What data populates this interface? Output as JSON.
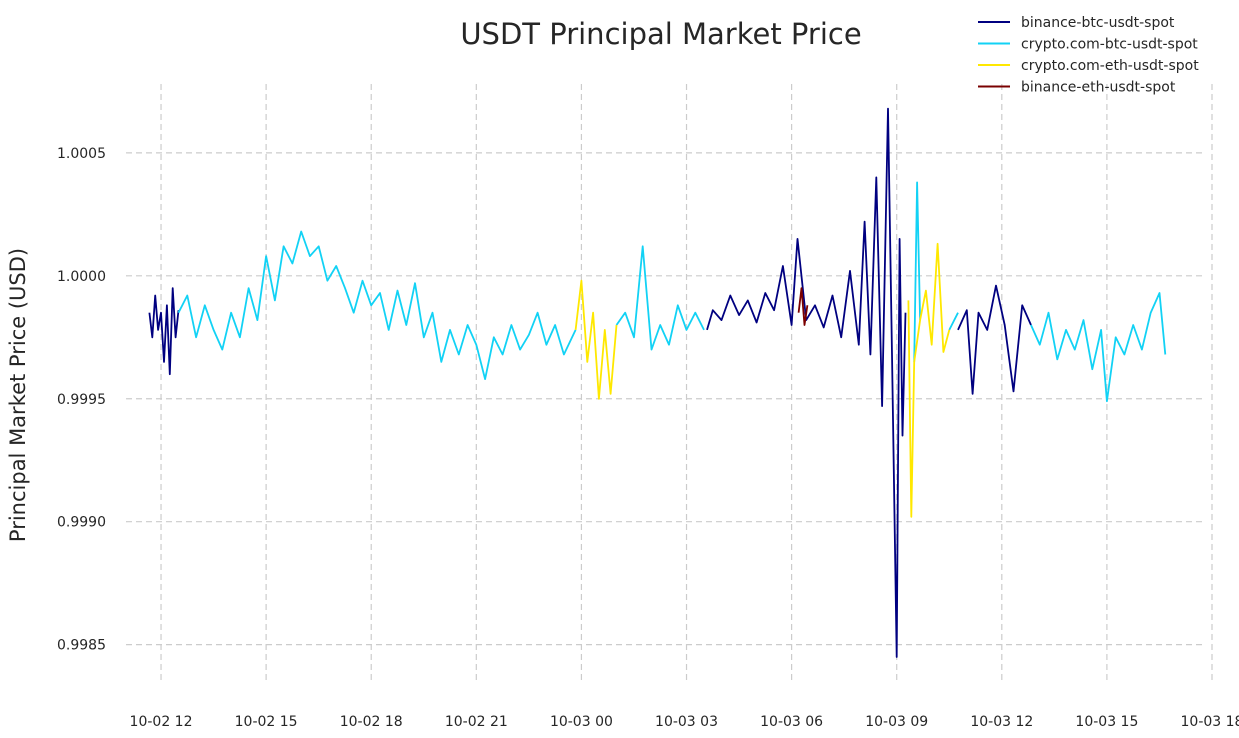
{
  "chart_data": {
    "type": "line",
    "title": "USDT Principal Market Price",
    "xlabel": "",
    "ylabel": "Principal Market Price (USD)",
    "x_type": "datetime",
    "xlim": [
      "2023-10-02 11:00",
      "2023-10-03 18:00"
    ],
    "ylim": [
      0.99834,
      1.00078
    ],
    "grid": true,
    "legend_position": "top-right",
    "x_ticks": [
      {
        "value": "2023-10-02 12:00",
        "label": "10-02 12"
      },
      {
        "value": "2023-10-02 15:00",
        "label": "10-02 15"
      },
      {
        "value": "2023-10-02 18:00",
        "label": "10-02 18"
      },
      {
        "value": "2023-10-02 21:00",
        "label": "10-02 21"
      },
      {
        "value": "2023-10-03 00:00",
        "label": "10-03 00"
      },
      {
        "value": "2023-10-03 03:00",
        "label": "10-03 03"
      },
      {
        "value": "2023-10-03 06:00",
        "label": "10-03 06"
      },
      {
        "value": "2023-10-03 09:00",
        "label": "10-03 09"
      },
      {
        "value": "2023-10-03 12:00",
        "label": "10-03 12"
      },
      {
        "value": "2023-10-03 15:00",
        "label": "10-03 15"
      },
      {
        "value": "2023-10-03 18:00",
        "label": "10-03 18"
      }
    ],
    "y_ticks": [
      {
        "value": 0.9985,
        "label": "0.9985"
      },
      {
        "value": 0.999,
        "label": "0.9990"
      },
      {
        "value": 0.9995,
        "label": "0.9995"
      },
      {
        "value": 1.0,
        "label": "1.0000"
      },
      {
        "value": 1.0005,
        "label": "1.0005"
      }
    ],
    "series": [
      {
        "name": "binance-btc-usdt-spot",
        "color": "#000080",
        "points": [
          [
            "2023-10-02 11:40",
            0.99985
          ],
          [
            "2023-10-02 11:45",
            0.99975
          ],
          [
            "2023-10-02 11:50",
            0.99992
          ],
          [
            "2023-10-02 11:55",
            0.99978
          ],
          [
            "2023-10-02 12:00",
            0.99985
          ],
          [
            "2023-10-02 12:05",
            0.99965
          ],
          [
            "2023-10-02 12:10",
            0.99988
          ],
          [
            "2023-10-02 12:15",
            0.9996
          ],
          [
            "2023-10-02 12:20",
            0.99995
          ],
          [
            "2023-10-02 12:25",
            0.99975
          ],
          [
            "2023-10-02 12:30",
            0.99986
          ],
          [
            "2023-10-03 03:35",
            0.99978
          ],
          [
            "2023-10-03 03:45",
            0.99986
          ],
          [
            "2023-10-03 04:00",
            0.99982
          ],
          [
            "2023-10-03 04:15",
            0.99992
          ],
          [
            "2023-10-03 04:30",
            0.99984
          ],
          [
            "2023-10-03 04:45",
            0.9999
          ],
          [
            "2023-10-03 05:00",
            0.99981
          ],
          [
            "2023-10-03 05:15",
            0.99993
          ],
          [
            "2023-10-03 05:30",
            0.99986
          ],
          [
            "2023-10-03 05:45",
            1.00004
          ],
          [
            "2023-10-03 06:00",
            0.9998
          ],
          [
            "2023-10-03 06:10",
            1.00015
          ],
          [
            "2023-10-03 06:25",
            0.99982
          ],
          [
            "2023-10-03 06:40",
            0.99988
          ],
          [
            "2023-10-03 06:55",
            0.99979
          ],
          [
            "2023-10-03 07:10",
            0.99992
          ],
          [
            "2023-10-03 07:25",
            0.99975
          ],
          [
            "2023-10-03 07:40",
            1.00002
          ],
          [
            "2023-10-03 07:55",
            0.99972
          ],
          [
            "2023-10-03 08:05",
            1.00022
          ],
          [
            "2023-10-03 08:15",
            0.99968
          ],
          [
            "2023-10-03 08:25",
            1.0004
          ],
          [
            "2023-10-03 08:35",
            0.99947
          ],
          [
            "2023-10-03 08:45",
            1.00068
          ],
          [
            "2023-10-03 08:52",
            0.99968
          ],
          [
            "2023-10-03 09:00",
            0.99845
          ],
          [
            "2023-10-03 09:05",
            1.00015
          ],
          [
            "2023-10-03 09:10",
            0.99935
          ],
          [
            "2023-10-03 09:15",
            0.99985
          ],
          [
            "2023-10-03 10:45",
            0.99978
          ],
          [
            "2023-10-03 11:00",
            0.99986
          ],
          [
            "2023-10-03 11:10",
            0.99952
          ],
          [
            "2023-10-03 11:20",
            0.99985
          ],
          [
            "2023-10-03 11:35",
            0.99978
          ],
          [
            "2023-10-03 11:50",
            0.99996
          ],
          [
            "2023-10-03 12:05",
            0.9998
          ],
          [
            "2023-10-03 12:20",
            0.99953
          ],
          [
            "2023-10-03 12:35",
            0.99988
          ],
          [
            "2023-10-03 12:50",
            0.9998
          ]
        ]
      },
      {
        "name": "crypto.com-btc-usdt-spot",
        "color": "#12d2f5",
        "points": [
          [
            "2023-10-02 12:30",
            0.99985
          ],
          [
            "2023-10-02 12:45",
            0.99992
          ],
          [
            "2023-10-02 13:00",
            0.99975
          ],
          [
            "2023-10-02 13:15",
            0.99988
          ],
          [
            "2023-10-02 13:30",
            0.99978
          ],
          [
            "2023-10-02 13:45",
            0.9997
          ],
          [
            "2023-10-02 14:00",
            0.99985
          ],
          [
            "2023-10-02 14:15",
            0.99975
          ],
          [
            "2023-10-02 14:30",
            0.99995
          ],
          [
            "2023-10-02 14:45",
            0.99982
          ],
          [
            "2023-10-02 15:00",
            1.00008
          ],
          [
            "2023-10-02 15:15",
            0.9999
          ],
          [
            "2023-10-02 15:30",
            1.00012
          ],
          [
            "2023-10-02 15:45",
            1.00005
          ],
          [
            "2023-10-02 16:00",
            1.00018
          ],
          [
            "2023-10-02 16:15",
            1.00008
          ],
          [
            "2023-10-02 16:30",
            1.00012
          ],
          [
            "2023-10-02 16:45",
            0.99998
          ],
          [
            "2023-10-02 17:00",
            1.00004
          ],
          [
            "2023-10-02 17:15",
            0.99995
          ],
          [
            "2023-10-02 17:30",
            0.99985
          ],
          [
            "2023-10-02 17:45",
            0.99998
          ],
          [
            "2023-10-02 18:00",
            0.99988
          ],
          [
            "2023-10-02 18:15",
            0.99993
          ],
          [
            "2023-10-02 18:30",
            0.99978
          ],
          [
            "2023-10-02 18:45",
            0.99994
          ],
          [
            "2023-10-02 19:00",
            0.9998
          ],
          [
            "2023-10-02 19:15",
            0.99997
          ],
          [
            "2023-10-02 19:30",
            0.99975
          ],
          [
            "2023-10-02 19:45",
            0.99985
          ],
          [
            "2023-10-02 20:00",
            0.99965
          ],
          [
            "2023-10-02 20:15",
            0.99978
          ],
          [
            "2023-10-02 20:30",
            0.99968
          ],
          [
            "2023-10-02 20:45",
            0.9998
          ],
          [
            "2023-10-02 21:00",
            0.99972
          ],
          [
            "2023-10-02 21:15",
            0.99958
          ],
          [
            "2023-10-02 21:30",
            0.99975
          ],
          [
            "2023-10-02 21:45",
            0.99968
          ],
          [
            "2023-10-02 22:00",
            0.9998
          ],
          [
            "2023-10-02 22:15",
            0.9997
          ],
          [
            "2023-10-02 22:30",
            0.99976
          ],
          [
            "2023-10-02 22:45",
            0.99985
          ],
          [
            "2023-10-02 23:00",
            0.99972
          ],
          [
            "2023-10-02 23:15",
            0.9998
          ],
          [
            "2023-10-02 23:30",
            0.99968
          ],
          [
            "2023-10-02 23:50",
            0.99978
          ],
          [
            "2023-10-03 01:00",
            0.9998
          ],
          [
            "2023-10-03 01:15",
            0.99985
          ],
          [
            "2023-10-03 01:30",
            0.99975
          ],
          [
            "2023-10-03 01:45",
            1.00012
          ],
          [
            "2023-10-03 02:00",
            0.9997
          ],
          [
            "2023-10-03 02:15",
            0.9998
          ],
          [
            "2023-10-03 02:30",
            0.99972
          ],
          [
            "2023-10-03 02:45",
            0.99988
          ],
          [
            "2023-10-03 03:00",
            0.99978
          ],
          [
            "2023-10-03 03:15",
            0.99985
          ],
          [
            "2023-10-03 03:30",
            0.99978
          ],
          [
            "2023-10-03 09:30",
            0.99965
          ],
          [
            "2023-10-03 09:35",
            1.00038
          ],
          [
            "2023-10-03 09:40",
            0.99982
          ],
          [
            "2023-10-03 10:30",
            0.99978
          ],
          [
            "2023-10-03 10:45",
            0.99985
          ],
          [
            "2023-10-03 12:50",
            0.9998
          ],
          [
            "2023-10-03 13:05",
            0.99972
          ],
          [
            "2023-10-03 13:20",
            0.99985
          ],
          [
            "2023-10-03 13:35",
            0.99966
          ],
          [
            "2023-10-03 13:50",
            0.99978
          ],
          [
            "2023-10-03 14:05",
            0.9997
          ],
          [
            "2023-10-03 14:20",
            0.99982
          ],
          [
            "2023-10-03 14:35",
            0.99962
          ],
          [
            "2023-10-03 14:50",
            0.99978
          ],
          [
            "2023-10-03 15:00",
            0.99949
          ],
          [
            "2023-10-03 15:15",
            0.99975
          ],
          [
            "2023-10-03 15:30",
            0.99968
          ],
          [
            "2023-10-03 15:45",
            0.9998
          ],
          [
            "2023-10-03 16:00",
            0.9997
          ],
          [
            "2023-10-03 16:15",
            0.99985
          ],
          [
            "2023-10-03 16:30",
            0.99993
          ],
          [
            "2023-10-03 16:40",
            0.99968
          ]
        ]
      },
      {
        "name": "crypto.com-eth-usdt-spot",
        "color": "#ffe800",
        "points": [
          [
            "2023-10-02 23:50",
            0.99978
          ],
          [
            "2023-10-03 00:00",
            0.99998
          ],
          [
            "2023-10-03 00:10",
            0.99965
          ],
          [
            "2023-10-03 00:20",
            0.99985
          ],
          [
            "2023-10-03 00:30",
            0.9995
          ],
          [
            "2023-10-03 00:40",
            0.99978
          ],
          [
            "2023-10-03 00:50",
            0.99952
          ],
          [
            "2023-10-03 01:00",
            0.9998
          ],
          [
            "2023-10-03 09:20",
            0.9999
          ],
          [
            "2023-10-03 09:25",
            0.99902
          ],
          [
            "2023-10-03 09:30",
            0.99965
          ],
          [
            "2023-10-03 09:40",
            0.99982
          ],
          [
            "2023-10-03 09:50",
            0.99994
          ],
          [
            "2023-10-03 10:00",
            0.99972
          ],
          [
            "2023-10-03 10:10",
            1.00013
          ],
          [
            "2023-10-03 10:20",
            0.99969
          ],
          [
            "2023-10-03 10:30",
            0.99978
          ]
        ]
      },
      {
        "name": "binance-eth-usdt-spot",
        "color": "#7a0000",
        "points": [
          [
            "2023-10-03 06:12",
            0.99985
          ],
          [
            "2023-10-03 06:17",
            0.99995
          ],
          [
            "2023-10-03 06:22",
            0.9998
          ],
          [
            "2023-10-03 06:27",
            0.99988
          ]
        ]
      }
    ]
  }
}
